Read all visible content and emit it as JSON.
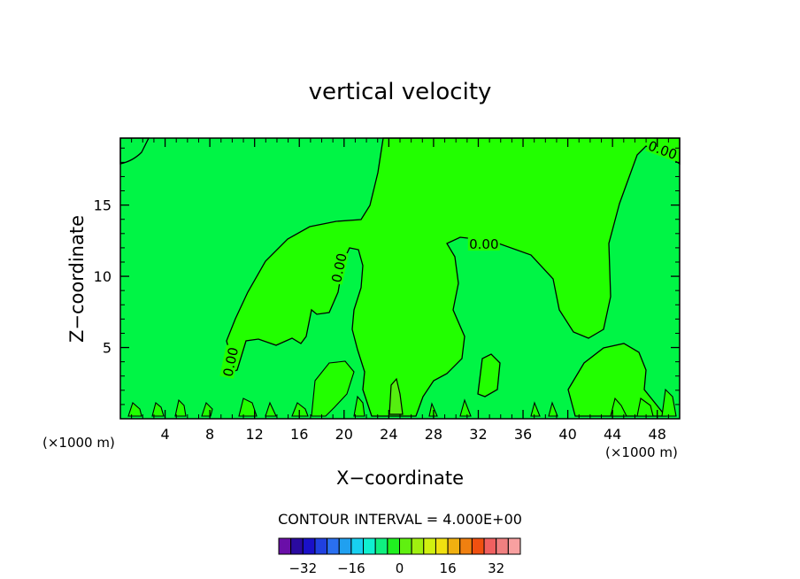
{
  "chart_data": {
    "type": "contour",
    "title": "vertical velocity",
    "xlabel": "X−coordinate",
    "ylabel": "Z−coordinate",
    "x_unit_left": "(×1000 m)",
    "x_unit_right": "(×1000 m)",
    "xlim": [
      0,
      50
    ],
    "ylim": [
      0,
      19.7
    ],
    "x_ticks": [
      4,
      8,
      12,
      16,
      20,
      24,
      28,
      32,
      36,
      40,
      44,
      48
    ],
    "y_ticks": [
      5,
      10,
      15
    ],
    "contour_labels": [
      {
        "text": "0.00",
        "x": 32.5,
        "z": 12.3
      },
      {
        "text": "0.00",
        "x": 19.5,
        "z": 10.6
      },
      {
        "text": "0.00",
        "x": 9.8,
        "z": 4.0
      },
      {
        "text": "0.00",
        "x": 48.5,
        "z": 18.9
      }
    ],
    "contour_interval_text": "CONTOUR INTERVAL = 4.000E+00",
    "colorbar": {
      "colors": [
        "#6a0fa8",
        "#2a0aa0",
        "#1a10c8",
        "#2040e0",
        "#2a70f0",
        "#20a0f0",
        "#18d0f0",
        "#10f0d0",
        "#10f080",
        "#20f020",
        "#60f010",
        "#a0f010",
        "#d0f010",
        "#f0e010",
        "#f0b010",
        "#f08010",
        "#f05010",
        "#f06060",
        "#f08080",
        "#f8a0a0"
      ],
      "tick_labels": [
        "−32",
        "−16",
        "0",
        "16",
        "32"
      ],
      "tick_values": [
        -32,
        -16,
        0,
        16,
        32
      ]
    },
    "colors": {
      "positive": "#22ff00",
      "negative": "#00f545",
      "line": "#000000"
    }
  }
}
